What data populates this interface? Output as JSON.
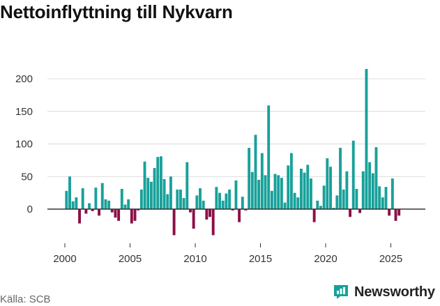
{
  "title": "Nettoinflyttning till Nykvarn",
  "source": "Källa: SCB",
  "brand": {
    "name": "Newsworthy",
    "icon": "newsworthy-logo-icon"
  },
  "colors": {
    "positive": "#18a19a",
    "negative": "#8c0f47",
    "grid": "#dcdcdc",
    "axis": "#333333",
    "text": "#333333"
  },
  "chart_data": {
    "type": "bar",
    "title": "Nettoinflyttning till Nykvarn",
    "xlabel": "",
    "ylabel": "",
    "frequency": "quarterly",
    "start": "2000 Q1",
    "ylim": [
      -40,
      220
    ],
    "yticks": [
      0,
      50,
      100,
      150,
      200
    ],
    "xticks": [
      2000,
      2005,
      2010,
      2015,
      2020,
      2025
    ],
    "values": [
      28,
      50,
      12,
      18,
      -22,
      32,
      -7,
      9,
      -3,
      33,
      -10,
      40,
      15,
      13,
      -5,
      -13,
      -18,
      31,
      7,
      15,
      -22,
      -18,
      -2,
      30,
      73,
      48,
      42,
      63,
      80,
      81,
      46,
      23,
      50,
      -40,
      30,
      30,
      17,
      72,
      -5,
      -30,
      21,
      32,
      13,
      -16,
      -12,
      -40,
      34,
      25,
      13,
      24,
      30,
      -2,
      44,
      -20,
      19,
      -2,
      94,
      57,
      114,
      45,
      86,
      52,
      159,
      28,
      54,
      52,
      48,
      10,
      67,
      86,
      25,
      18,
      62,
      56,
      68,
      47,
      -20,
      13,
      5,
      36,
      78,
      65,
      2,
      21,
      94,
      30,
      58,
      -12,
      105,
      31,
      -6,
      58,
      215,
      72,
      55,
      95,
      35,
      18,
      34,
      -10,
      47,
      -18,
      -10
    ]
  }
}
